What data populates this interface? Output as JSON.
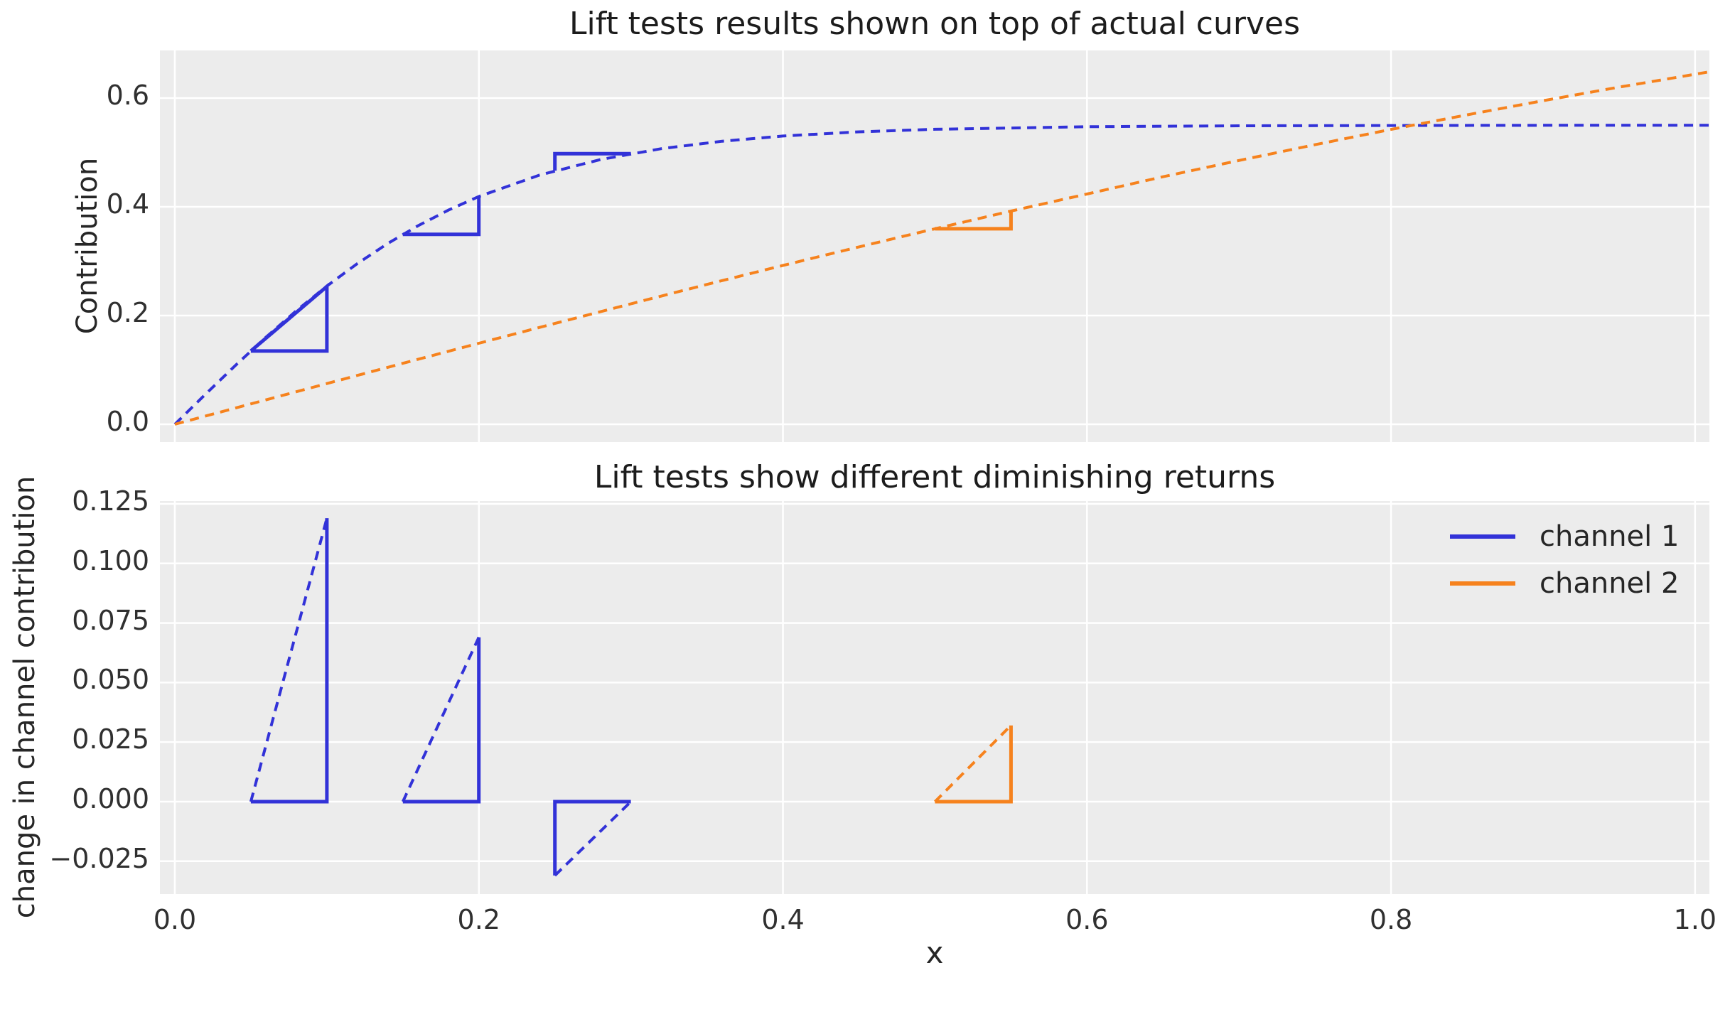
{
  "colors": {
    "channel1": "#3232d8",
    "channel2": "#f6821d",
    "plot_background": "#ececec",
    "grid": "#ffffff",
    "text": "#262626"
  },
  "chart_data": [
    {
      "id": "top",
      "type": "line",
      "title": "Lift tests results shown on top of actual curves",
      "ylabel": "Contribution",
      "grid": true,
      "legend_position": "none",
      "xlim": [
        -0.0098,
        1.0094
      ],
      "ylim": [
        -0.0327,
        0.6876
      ],
      "xticks": [
        {
          "v": 0.0,
          "label": ""
        },
        {
          "v": 0.2,
          "label": ""
        },
        {
          "v": 0.4,
          "label": ""
        },
        {
          "v": 0.6,
          "label": ""
        },
        {
          "v": 0.8,
          "label": ""
        },
        {
          "v": 1.0,
          "label": ""
        }
      ],
      "yticks": [
        {
          "v": 0.0,
          "label": "0.0"
        },
        {
          "v": 0.2,
          "label": "0.2"
        },
        {
          "v": 0.4,
          "label": "0.4"
        },
        {
          "v": 0.6,
          "label": "0.6"
        }
      ],
      "series": [
        {
          "name": "channel-1-curve",
          "color": "channel1",
          "dashed": true,
          "width": 4,
          "points": [
            [
              0,
              0
            ],
            [
              0.02,
              0.0548
            ],
            [
              0.04,
              0.1086
            ],
            [
              0.06,
              0.1602
            ],
            [
              0.08,
              0.209
            ],
            [
              0.1,
              0.2542
            ],
            [
              0.12,
              0.2954
            ],
            [
              0.14,
              0.3324
            ],
            [
              0.16,
              0.3652
            ],
            [
              0.18,
              0.394
            ],
            [
              0.2,
              0.4189
            ],
            [
              0.24,
              0.4585
            ],
            [
              0.28,
              0.4869
            ],
            [
              0.32,
              0.5069
            ],
            [
              0.36,
              0.5207
            ],
            [
              0.4,
              0.5302
            ],
            [
              0.45,
              0.5379
            ],
            [
              0.5,
              0.5426
            ],
            [
              0.6,
              0.5473
            ],
            [
              0.7,
              0.549
            ],
            [
              0.8,
              0.5496
            ],
            [
              0.9,
              0.5499
            ],
            [
              1.01,
              0.55
            ]
          ]
        },
        {
          "name": "channel-2-curve",
          "color": "channel2",
          "dashed": true,
          "width": 4,
          "points": [
            [
              0,
              0
            ],
            [
              0.05,
              0.0375
            ],
            [
              0.1,
              0.0749
            ],
            [
              0.15,
              0.1121
            ],
            [
              0.2,
              0.149
            ],
            [
              0.25,
              0.1855
            ],
            [
              0.3,
              0.2216
            ],
            [
              0.35,
              0.2572
            ],
            [
              0.4,
              0.2921
            ],
            [
              0.45,
              0.3263
            ],
            [
              0.5,
              0.3596
            ],
            [
              0.55,
              0.3921
            ],
            [
              0.6,
              0.4235
            ],
            [
              0.65,
              0.4553
            ],
            [
              0.7,
              0.4852
            ],
            [
              0.75,
              0.5142
            ],
            [
              0.8,
              0.5423
            ],
            [
              0.85,
              0.5692
            ],
            [
              0.9,
              0.5952
            ],
            [
              0.95,
              0.6201
            ],
            [
              1.01,
              0.6487
            ]
          ]
        },
        {
          "name": "lift-test-1-channel1",
          "color": "channel1",
          "dashed": false,
          "width": 5,
          "points": [
            [
              0.05,
              0.1347
            ],
            [
              0.1,
              0.1347
            ],
            [
              0.1,
              0.2534
            ],
            [
              0.05,
              0.1347
            ]
          ]
        },
        {
          "name": "lift-test-2-channel1",
          "color": "channel1",
          "dashed": false,
          "width": 5,
          "points": [
            [
              0.15,
              0.3493
            ],
            [
              0.2,
              0.3493
            ],
            [
              0.2,
              0.4189
            ]
          ]
        },
        {
          "name": "lift-test-3-channel1",
          "color": "channel1",
          "dashed": false,
          "width": 5,
          "points": [
            [
              0.3,
              0.4978
            ],
            [
              0.25,
              0.4978
            ],
            [
              0.25,
              0.4666
            ]
          ]
        },
        {
          "name": "lift-test-channel2",
          "color": "channel2",
          "dashed": false,
          "width": 5,
          "points": [
            [
              0.5,
              0.3596
            ],
            [
              0.55,
              0.3596
            ],
            [
              0.55,
              0.3918
            ]
          ]
        }
      ]
    },
    {
      "id": "bottom",
      "type": "line",
      "title": "Lift tests show different diminishing returns",
      "ylabel": "change in channel contribution",
      "xlabel": "x",
      "grid": true,
      "legend_position": "upper right",
      "xlim": [
        -0.0098,
        1.0094
      ],
      "ylim": [
        -0.0388,
        0.1262
      ],
      "xticks": [
        {
          "v": 0.0,
          "label": "0.0"
        },
        {
          "v": 0.2,
          "label": "0.2"
        },
        {
          "v": 0.4,
          "label": "0.4"
        },
        {
          "v": 0.6,
          "label": "0.6"
        },
        {
          "v": 0.8,
          "label": "0.8"
        },
        {
          "v": 1.0,
          "label": "1.0"
        }
      ],
      "yticks": [
        {
          "v": 0.125,
          "label": "0.125"
        },
        {
          "v": 0.1,
          "label": "0.100"
        },
        {
          "v": 0.075,
          "label": "0.075"
        },
        {
          "v": 0.05,
          "label": "0.050"
        },
        {
          "v": 0.025,
          "label": "0.025"
        },
        {
          "v": 0.0,
          "label": "0.000"
        },
        {
          "v": -0.025,
          "label": "−0.025"
        }
      ],
      "legend": [
        {
          "label": "channel 1",
          "color": "channel1"
        },
        {
          "label": "channel 2",
          "color": "channel2"
        }
      ],
      "series": [
        {
          "name": "lift-1-sides",
          "color": "channel1",
          "dashed": false,
          "width": 5,
          "points": [
            [
              0.05,
              0
            ],
            [
              0.1,
              0
            ],
            [
              0.1,
              0.119
            ]
          ]
        },
        {
          "name": "lift-1-hypotenuse",
          "color": "channel1",
          "dashed": true,
          "width": 4,
          "points": [
            [
              0.05,
              0
            ],
            [
              0.1,
              0.119
            ]
          ]
        },
        {
          "name": "lift-2-sides",
          "color": "channel1",
          "dashed": false,
          "width": 5,
          "points": [
            [
              0.15,
              0
            ],
            [
              0.2,
              0
            ],
            [
              0.2,
              0.069
            ]
          ]
        },
        {
          "name": "lift-2-hypotenuse",
          "color": "channel1",
          "dashed": true,
          "width": 4,
          "points": [
            [
              0.15,
              0
            ],
            [
              0.2,
              0.069
            ]
          ]
        },
        {
          "name": "lift-3-sides",
          "color": "channel1",
          "dashed": false,
          "width": 5,
          "points": [
            [
              0.3,
              0
            ],
            [
              0.25,
              0
            ],
            [
              0.25,
              -0.031
            ]
          ]
        },
        {
          "name": "lift-3-hypotenuse",
          "color": "channel1",
          "dashed": true,
          "width": 4,
          "points": [
            [
              0.25,
              -0.031
            ],
            [
              0.3,
              0
            ]
          ]
        },
        {
          "name": "lift-4-sides",
          "color": "channel2",
          "dashed": false,
          "width": 5,
          "points": [
            [
              0.5,
              0
            ],
            [
              0.55,
              0
            ],
            [
              0.55,
              0.032
            ]
          ]
        },
        {
          "name": "lift-4-hypotenuse",
          "color": "channel2",
          "dashed": true,
          "width": 4,
          "points": [
            [
              0.5,
              0
            ],
            [
              0.55,
              0.032
            ]
          ]
        }
      ]
    }
  ]
}
